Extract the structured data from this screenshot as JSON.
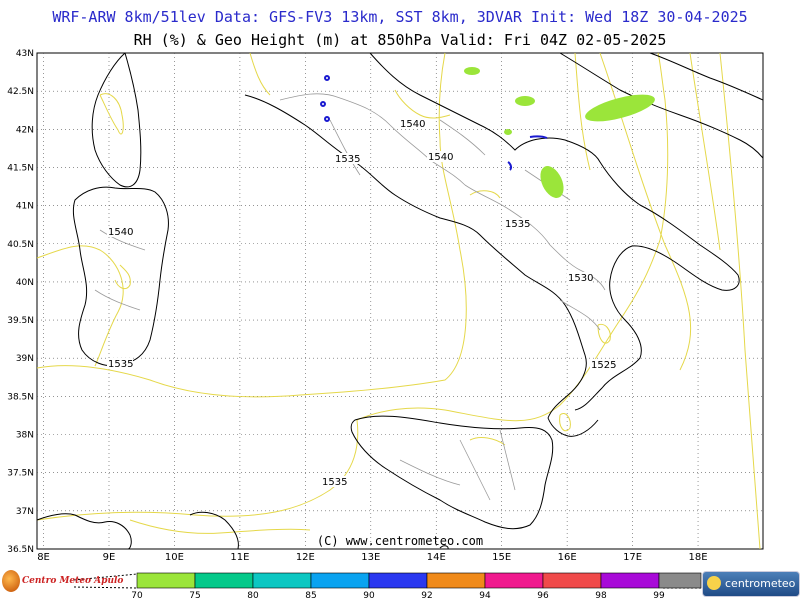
{
  "header": {
    "line1": "WRF-ARW 8km/51lev  Data: GFS-FV3 13km, SST 8km, 3DVAR  Init: Wed 18Z 30-04-2025",
    "line2": "RH (%) & Geo Height (m) at 850hPa  Valid: Fri 04Z 02-05-2025"
  },
  "map": {
    "lat_labels": [
      "43N",
      "42.5N",
      "42N",
      "41.5N",
      "41N",
      "40.5N",
      "40N",
      "39.5N",
      "39N",
      "38.5N",
      "38N",
      "37.5N",
      "37N",
      "36.5N"
    ],
    "lon_labels": [
      "8E",
      "9E",
      "10E",
      "11E",
      "12E",
      "13E",
      "14E",
      "15E",
      "16E",
      "17E",
      "18E"
    ],
    "contour_labels": [
      "1540",
      "1535",
      "1540",
      "1540",
      "1535",
      "1530",
      "1525",
      "1535",
      "1535"
    ],
    "copyright": "(C) www.centrometeo.com",
    "colors": {
      "coast": "#000000",
      "borders": "#9a9a9a",
      "geo_contour": "#e5d84a",
      "rh_fill": "#9be53a",
      "grid": "#555555",
      "axis_text": "#000000"
    }
  },
  "legend": {
    "ticks": [
      "70",
      "75",
      "80",
      "85",
      "90",
      "92",
      "94",
      "96",
      "98",
      "99"
    ],
    "colors": [
      "#9be53a",
      "#04c98a",
      "#0cc7c2",
      "#0aa3f0",
      "#2a38f0",
      "#f08a1a",
      "#f01a8e",
      "#f04a4a",
      "#a80ad8",
      "#8a8a8a"
    ]
  },
  "logos": {
    "left": "Centro Meteo Apulo",
    "right": "centrometeo"
  }
}
